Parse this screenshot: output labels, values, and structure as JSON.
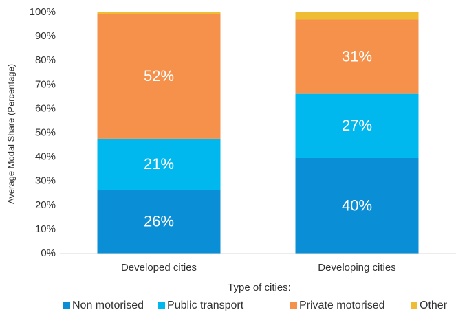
{
  "chart_data": {
    "type": "stacked_bar",
    "categories": [
      "Developed cities",
      "Developing cities"
    ],
    "series": [
      {
        "name": "Non motorised",
        "color": "#0a8fd6",
        "values": [
          26.4,
          39.6
        ],
        "value_labels": [
          "26%",
          "40%"
        ]
      },
      {
        "name": "Public transport",
        "color": "#00b8ee",
        "values": [
          21.2,
          26.6
        ],
        "value_labels": [
          "21%",
          "27%"
        ]
      },
      {
        "name": "Private motorised",
        "color": "#f5914a",
        "values": [
          51.7,
          30.8
        ],
        "value_labels": [
          "52%",
          "31%"
        ]
      },
      {
        "name": "Other",
        "color": "#eebd33",
        "values": [
          0.7,
          3.0
        ]
      }
    ],
    "ylim": [
      0,
      100
    ],
    "yticks": [
      {
        "value": 0,
        "label": "0%"
      },
      {
        "value": 10,
        "label": "10%"
      },
      {
        "value": 20,
        "label": "20%"
      },
      {
        "value": 30,
        "label": "30%"
      },
      {
        "value": 40,
        "label": "40%"
      },
      {
        "value": 50,
        "label": "50%"
      },
      {
        "value": 60,
        "label": "60%"
      },
      {
        "value": 70,
        "label": "70%"
      },
      {
        "value": 80,
        "label": "80%"
      },
      {
        "value": 90,
        "label": "90%"
      },
      {
        "value": 100,
        "label": "100%"
      }
    ],
    "ylabel": "Average Modal Share (Percentage)",
    "xlabel": "Type of cities:",
    "legend": "bottom"
  }
}
